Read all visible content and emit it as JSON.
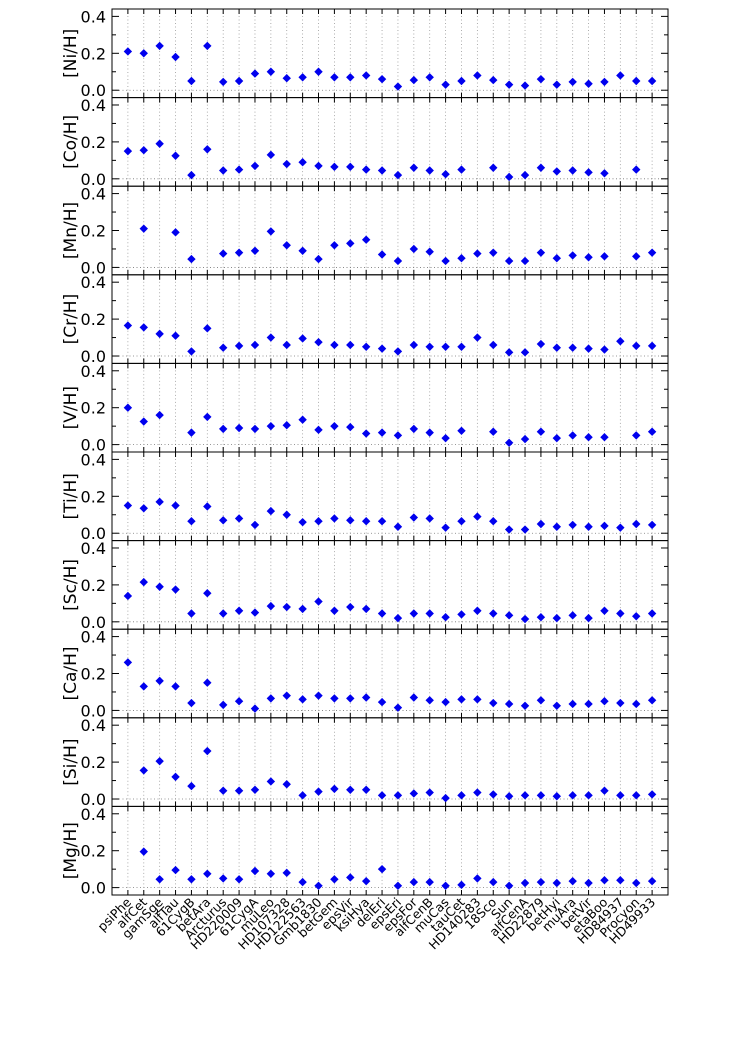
{
  "chart_data": {
    "type": "scatter",
    "categories": [
      "psiPhe",
      "alfCet",
      "gamSge",
      "alfTau",
      "61CygB",
      "betAra",
      "Arcturus",
      "HD220009",
      "61CygA",
      "muLeo",
      "HD107328",
      "HD122563",
      "Gmb1830",
      "betGem",
      "epsVir",
      "ksiHya",
      "delEri",
      "epsEri",
      "epsFor",
      "alfCenB",
      "muCas",
      "tauCet",
      "HD140283",
      "18Sco",
      "Sun",
      "alfCenA",
      "HD22879",
      "betHyi",
      "muAra",
      "betVir",
      "etaBoo",
      "HD84937",
      "Procyon",
      "HD49933"
    ],
    "ylim": [
      -0.04,
      0.44
    ],
    "yticks": [
      0.0,
      0.2,
      0.4
    ],
    "ytick_labels": [
      "0.0",
      "0.2",
      "0.4"
    ],
    "zero_line": 0.0,
    "grid": "vertical dotted per star",
    "marker": "diamond",
    "marker_color": "#0000ee",
    "panels": [
      {
        "ylabel": "[Ni/H]",
        "values": [
          0.21,
          0.2,
          0.24,
          0.18,
          0.05,
          0.24,
          0.045,
          0.05,
          0.09,
          0.1,
          0.065,
          0.07,
          0.1,
          0.07,
          0.07,
          0.08,
          0.06,
          0.02,
          0.055,
          0.07,
          0.03,
          0.05,
          0.08,
          0.055,
          0.03,
          0.025,
          0.06,
          0.03,
          0.045,
          0.035,
          0.045,
          0.08,
          0.05,
          0.05
        ]
      },
      {
        "ylabel": "[Co/H]",
        "values": [
          0.15,
          0.155,
          0.19,
          0.125,
          0.02,
          0.16,
          0.045,
          0.05,
          0.07,
          0.13,
          0.08,
          0.09,
          0.07,
          0.065,
          0.065,
          0.05,
          0.045,
          0.02,
          0.06,
          0.045,
          0.025,
          0.05,
          null,
          0.06,
          0.01,
          0.02,
          0.06,
          0.04,
          0.045,
          0.035,
          0.03,
          null,
          0.05,
          null
        ]
      },
      {
        "ylabel": "[Mn/H]",
        "values": [
          null,
          0.21,
          null,
          0.19,
          0.045,
          null,
          0.075,
          0.08,
          0.09,
          0.195,
          0.12,
          0.09,
          0.045,
          0.12,
          0.13,
          0.15,
          0.07,
          0.035,
          0.1,
          0.085,
          0.035,
          0.05,
          0.075,
          0.08,
          0.035,
          0.035,
          0.08,
          0.05,
          0.065,
          0.055,
          0.06,
          null,
          0.06,
          0.08
        ]
      },
      {
        "ylabel": "[Cr/H]",
        "values": [
          0.165,
          0.155,
          0.12,
          0.11,
          0.025,
          0.15,
          0.045,
          0.055,
          0.06,
          0.1,
          0.06,
          0.095,
          0.075,
          0.06,
          0.06,
          0.05,
          0.04,
          0.025,
          0.06,
          0.05,
          0.05,
          0.05,
          0.1,
          0.06,
          0.02,
          0.02,
          0.065,
          0.045,
          0.045,
          0.04,
          0.035,
          0.08,
          0.055,
          0.055
        ]
      },
      {
        "ylabel": "[V/H]",
        "values": [
          0.2,
          0.125,
          0.16,
          null,
          0.065,
          0.15,
          0.085,
          0.09,
          0.085,
          0.1,
          0.105,
          0.135,
          0.08,
          0.1,
          0.095,
          0.06,
          0.065,
          0.05,
          0.085,
          0.065,
          0.035,
          0.075,
          null,
          0.07,
          0.01,
          0.03,
          0.07,
          0.035,
          0.05,
          0.04,
          0.04,
          null,
          0.05,
          0.07
        ]
      },
      {
        "ylabel": "[Ti/H]",
        "values": [
          0.15,
          0.135,
          0.17,
          0.15,
          0.065,
          0.145,
          0.07,
          0.08,
          0.045,
          0.12,
          0.1,
          0.06,
          0.065,
          0.08,
          0.07,
          0.065,
          0.065,
          0.035,
          0.085,
          0.08,
          0.03,
          0.065,
          0.09,
          0.065,
          0.02,
          0.02,
          0.05,
          0.035,
          0.045,
          0.035,
          0.04,
          0.03,
          0.05,
          0.045
        ]
      },
      {
        "ylabel": "[Sc/H]",
        "values": [
          0.14,
          0.215,
          0.19,
          0.175,
          0.045,
          0.155,
          0.045,
          0.06,
          0.05,
          0.085,
          0.08,
          0.07,
          0.11,
          0.06,
          0.08,
          0.07,
          0.045,
          0.02,
          0.045,
          0.045,
          0.025,
          0.04,
          0.06,
          0.045,
          0.035,
          0.015,
          0.025,
          0.02,
          0.035,
          0.02,
          0.06,
          0.045,
          0.03,
          0.045
        ]
      },
      {
        "ylabel": "[Ca/H]",
        "values": [
          0.26,
          0.13,
          0.16,
          0.13,
          0.04,
          0.15,
          0.03,
          0.05,
          0.01,
          0.065,
          0.08,
          0.06,
          0.08,
          0.065,
          0.065,
          0.07,
          0.045,
          0.015,
          0.07,
          0.055,
          0.045,
          0.06,
          0.06,
          0.04,
          0.035,
          0.025,
          0.055,
          0.025,
          0.035,
          0.035,
          0.05,
          0.04,
          0.035,
          0.055
        ]
      },
      {
        "ylabel": "[Si/H]",
        "values": [
          null,
          0.155,
          0.205,
          0.12,
          0.07,
          0.26,
          0.045,
          0.045,
          0.05,
          0.095,
          0.08,
          0.02,
          0.04,
          0.055,
          0.05,
          0.05,
          0.02,
          0.02,
          0.03,
          0.035,
          0.005,
          0.02,
          0.035,
          0.025,
          0.015,
          0.02,
          0.02,
          0.015,
          0.02,
          0.02,
          0.045,
          0.02,
          0.02,
          0.025
        ]
      },
      {
        "ylabel": "[Mg/H]",
        "values": [
          null,
          0.195,
          0.045,
          0.095,
          0.045,
          0.075,
          0.05,
          0.045,
          0.09,
          0.075,
          0.08,
          0.03,
          0.01,
          0.045,
          0.055,
          0.035,
          0.1,
          0.01,
          0.03,
          0.03,
          0.01,
          0.015,
          0.05,
          0.03,
          0.01,
          0.025,
          0.03,
          0.025,
          0.035,
          0.025,
          0.04,
          0.04,
          0.025,
          0.035
        ]
      }
    ]
  }
}
